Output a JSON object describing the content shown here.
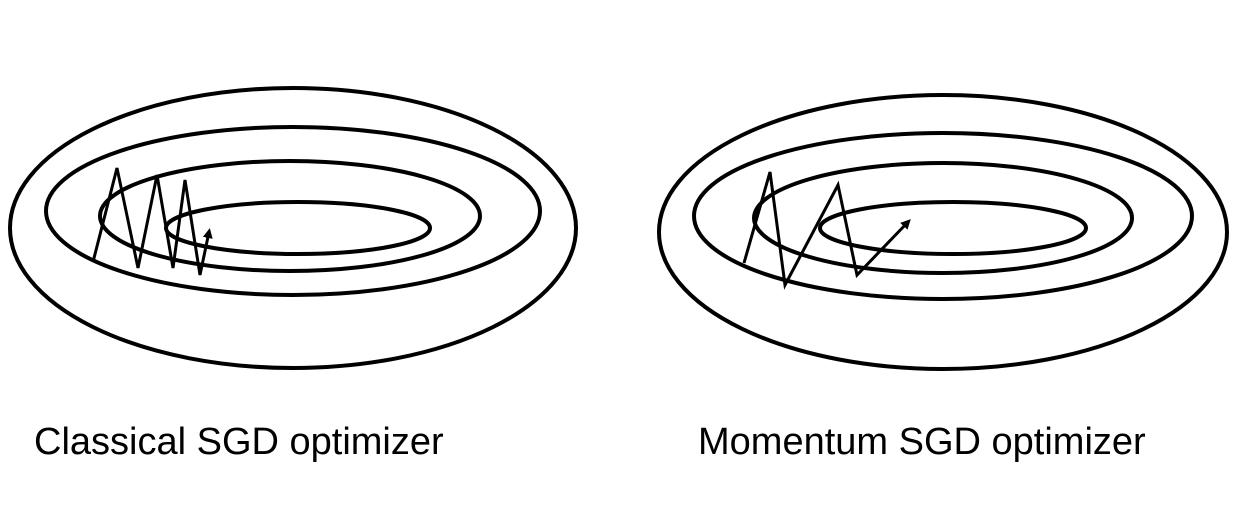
{
  "colors": {
    "stroke": "#000000",
    "background": "#ffffff"
  },
  "panels": [
    {
      "caption": "Classical SGD optimizer",
      "trajectory_icon": "zigzag-path-with-arrow-icon"
    },
    {
      "caption": "Momentum SGD optimizer",
      "trajectory_icon": "zigzag-path-with-arrow-icon"
    }
  ]
}
